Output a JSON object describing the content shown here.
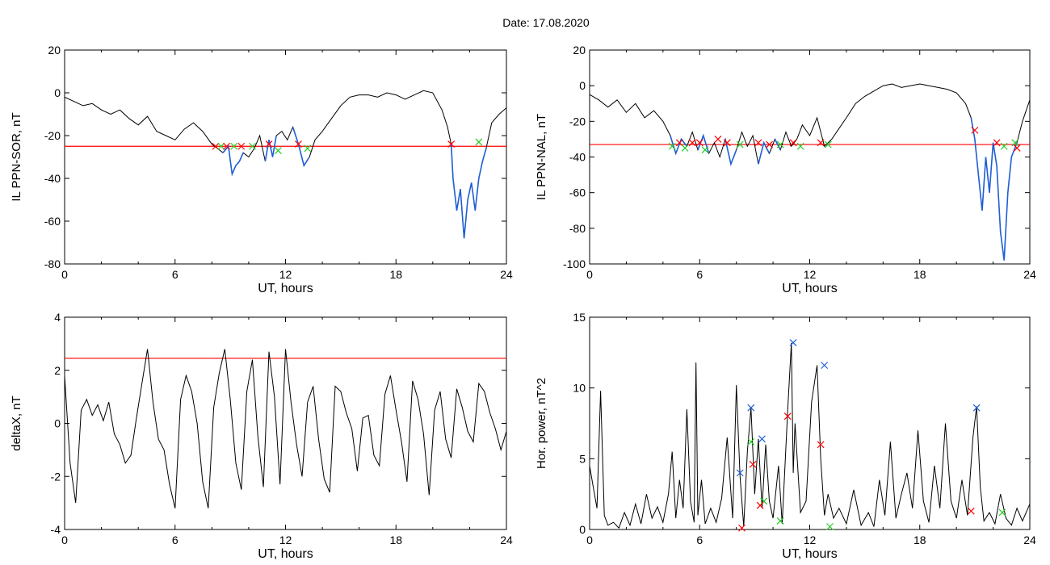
{
  "figure": {
    "title": "Date:  17.08.2020"
  },
  "colors": {
    "trace": "#000000",
    "threshold": "#ff0000",
    "highlight": "#1f5fd6",
    "marker_red": "#ff0000",
    "marker_green": "#22cc22",
    "marker_blue": "#1f5fd6"
  },
  "chart_data": [
    {
      "type": "line",
      "panel": "top-left",
      "xlabel": "UT, hours",
      "ylabel": "IL PPN-SOR, nT",
      "xlim": [
        0,
        24
      ],
      "ylim": [
        -80,
        20
      ],
      "xticks": [
        0,
        6,
        12,
        18,
        24
      ],
      "yticks": [
        -80,
        -60,
        -40,
        -20,
        0,
        20
      ],
      "threshold": -25,
      "x": [
        0,
        0.5,
        1,
        1.5,
        2,
        2.5,
        3,
        3.5,
        4,
        4.5,
        5,
        5.5,
        6,
        6.5,
        7,
        7.5,
        8,
        8.3,
        8.6,
        8.9,
        9.1,
        9.3,
        9.5,
        9.7,
        10,
        10.3,
        10.6,
        10.9,
        11.1,
        11.3,
        11.5,
        11.8,
        12.1,
        12.4,
        12.7,
        13,
        13.3,
        13.6,
        14,
        14.5,
        15,
        15.5,
        16,
        16.5,
        17,
        17.5,
        18,
        18.5,
        19,
        19.5,
        20,
        20.5,
        20.8,
        21,
        21.1,
        21.3,
        21.5,
        21.7,
        21.9,
        22.1,
        22.3,
        22.5,
        22.7,
        22.9,
        23.2,
        23.6,
        24
      ],
      "y": [
        -2,
        -4,
        -6,
        -5,
        -8,
        -10,
        -8,
        -12,
        -15,
        -11,
        -18,
        -20,
        -22,
        -17,
        -14,
        -18,
        -24,
        -26,
        -28,
        -25,
        -38,
        -34,
        -32,
        -28,
        -30,
        -26,
        -20,
        -32,
        -22,
        -30,
        -20,
        -18,
        -22,
        -16,
        -24,
        -34,
        -30,
        -22,
        -18,
        -12,
        -6,
        -2,
        -1,
        -1,
        -2,
        0,
        -1,
        -3,
        -1,
        1,
        0,
        -8,
        -16,
        -24,
        -40,
        -55,
        -45,
        -68,
        -50,
        -42,
        -55,
        -40,
        -32,
        -26,
        -14,
        -10,
        -7
      ],
      "highlight_ranges": [
        [
          8.6,
          9.7
        ],
        [
          10.9,
          11.5
        ],
        [
          12.4,
          13.3
        ],
        [
          21.0,
          23.0
        ]
      ],
      "markers": [
        {
          "x": 8.2,
          "y": -25,
          "color": "red"
        },
        {
          "x": 8.5,
          "y": -25,
          "color": "green"
        },
        {
          "x": 8.8,
          "y": -25,
          "color": "red"
        },
        {
          "x": 9.2,
          "y": -25,
          "color": "green"
        },
        {
          "x": 9.6,
          "y": -25,
          "color": "red"
        },
        {
          "x": 10.2,
          "y": -25,
          "color": "green"
        },
        {
          "x": 11.1,
          "y": -24,
          "color": "red"
        },
        {
          "x": 11.6,
          "y": -27,
          "color": "green"
        },
        {
          "x": 12.7,
          "y": -24,
          "color": "red"
        },
        {
          "x": 13.2,
          "y": -26,
          "color": "green"
        },
        {
          "x": 21.0,
          "y": -24,
          "color": "red"
        },
        {
          "x": 22.5,
          "y": -23,
          "color": "green"
        }
      ]
    },
    {
      "type": "line",
      "panel": "top-right",
      "xlabel": "UT, hours",
      "ylabel": "IL PPN-NAL, nT",
      "xlim": [
        0,
        24
      ],
      "ylim": [
        -100,
        20
      ],
      "xticks": [
        0,
        6,
        12,
        18,
        24
      ],
      "yticks": [
        -100,
        -80,
        -60,
        -40,
        -20,
        0,
        20
      ],
      "threshold": -33,
      "x": [
        0,
        0.5,
        1,
        1.5,
        2,
        2.5,
        3,
        3.5,
        4,
        4.4,
        4.7,
        5,
        5.3,
        5.6,
        5.9,
        6.2,
        6.5,
        6.8,
        7.1,
        7.4,
        7.7,
        8,
        8.3,
        8.6,
        8.9,
        9.2,
        9.5,
        9.8,
        10.1,
        10.4,
        10.7,
        11,
        11.3,
        11.6,
        12,
        12.4,
        12.8,
        13.2,
        13.6,
        14,
        14.5,
        15,
        15.5,
        16,
        16.5,
        17,
        17.5,
        18,
        18.5,
        19,
        19.5,
        20,
        20.5,
        20.8,
        21,
        21.2,
        21.4,
        21.6,
        21.8,
        22,
        22.2,
        22.4,
        22.6,
        22.8,
        23,
        23.3,
        23.6,
        24
      ],
      "y": [
        -5,
        -8,
        -12,
        -8,
        -15,
        -10,
        -18,
        -14,
        -20,
        -28,
        -38,
        -30,
        -34,
        -26,
        -36,
        -28,
        -38,
        -32,
        -40,
        -30,
        -44,
        -36,
        -26,
        -34,
        -28,
        -44,
        -32,
        -38,
        -30,
        -36,
        -26,
        -34,
        -30,
        -22,
        -28,
        -18,
        -34,
        -30,
        -24,
        -18,
        -10,
        -6,
        -3,
        0,
        1,
        -1,
        0,
        1,
        0,
        -1,
        -2,
        -4,
        -10,
        -18,
        -30,
        -50,
        -70,
        -40,
        -60,
        -32,
        -45,
        -82,
        -98,
        -60,
        -40,
        -32,
        -20,
        -8
      ],
      "highlight_ranges": [
        [
          4.4,
          5.3
        ],
        [
          5.9,
          6.5
        ],
        [
          7.4,
          8.0
        ],
        [
          9.2,
          9.8
        ],
        [
          10.1,
          10.4
        ],
        [
          20.8,
          23.3
        ]
      ],
      "markers": [
        {
          "x": 4.5,
          "y": -34,
          "color": "green"
        },
        {
          "x": 4.9,
          "y": -32,
          "color": "red"
        },
        {
          "x": 5.2,
          "y": -35,
          "color": "green"
        },
        {
          "x": 5.6,
          "y": -32,
          "color": "red"
        },
        {
          "x": 6.0,
          "y": -32,
          "color": "red"
        },
        {
          "x": 6.3,
          "y": -36,
          "color": "green"
        },
        {
          "x": 7.0,
          "y": -30,
          "color": "red"
        },
        {
          "x": 7.5,
          "y": -32,
          "color": "red"
        },
        {
          "x": 8.2,
          "y": -33,
          "color": "green"
        },
        {
          "x": 9.2,
          "y": -32,
          "color": "red"
        },
        {
          "x": 9.8,
          "y": -33,
          "color": "red"
        },
        {
          "x": 10.4,
          "y": -33,
          "color": "green"
        },
        {
          "x": 11.1,
          "y": -32,
          "color": "red"
        },
        {
          "x": 11.5,
          "y": -34,
          "color": "green"
        },
        {
          "x": 12.6,
          "y": -32,
          "color": "red"
        },
        {
          "x": 13.0,
          "y": -33,
          "color": "green"
        },
        {
          "x": 21.0,
          "y": -25,
          "color": "red"
        },
        {
          "x": 22.2,
          "y": -32,
          "color": "red"
        },
        {
          "x": 22.6,
          "y": -34,
          "color": "green"
        },
        {
          "x": 23.2,
          "y": -32,
          "color": "green"
        },
        {
          "x": 23.3,
          "y": -35,
          "color": "red"
        }
      ]
    },
    {
      "type": "line",
      "panel": "bottom-left",
      "xlabel": "UT, hours",
      "ylabel": "deltaX, nT",
      "xlim": [
        0,
        24
      ],
      "ylim": [
        -4,
        4
      ],
      "xticks": [
        0,
        6,
        12,
        18,
        24
      ],
      "yticks": [
        -4,
        -2,
        0,
        2,
        4
      ],
      "threshold": 2.45,
      "x": [
        0,
        0.3,
        0.6,
        0.9,
        1.2,
        1.5,
        1.8,
        2.1,
        2.4,
        2.7,
        3,
        3.3,
        3.6,
        3.9,
        4.2,
        4.5,
        4.8,
        5.1,
        5.4,
        5.7,
        6,
        6.3,
        6.6,
        6.9,
        7.2,
        7.5,
        7.8,
        8.1,
        8.4,
        8.7,
        9,
        9.3,
        9.6,
        9.9,
        10.2,
        10.5,
        10.8,
        11.1,
        11.4,
        11.7,
        12,
        12.3,
        12.6,
        12.9,
        13.2,
        13.5,
        13.8,
        14.1,
        14.4,
        14.7,
        15,
        15.3,
        15.6,
        15.9,
        16.2,
        16.5,
        16.8,
        17.1,
        17.4,
        17.7,
        18,
        18.3,
        18.6,
        18.9,
        19.2,
        19.5,
        19.8,
        20.1,
        20.4,
        20.7,
        21,
        21.3,
        21.6,
        21.9,
        22.2,
        22.5,
        22.8,
        23.1,
        23.4,
        23.7,
        24
      ],
      "y": [
        1.8,
        -1.5,
        -3.0,
        0.5,
        0.9,
        0.3,
        0.7,
        0.1,
        0.8,
        -0.4,
        -0.8,
        -1.5,
        -1.2,
        0.2,
        1.5,
        2.8,
        0.8,
        -0.6,
        -1.0,
        -2.3,
        -3.2,
        0.9,
        1.8,
        1.2,
        0.0,
        -2.2,
        -3.2,
        0.6,
        1.9,
        2.8,
        0.9,
        -1.5,
        -2.5,
        1.2,
        2.4,
        -0.5,
        -2.4,
        2.7,
        1.0,
        -2.3,
        2.8,
        0.8,
        -0.8,
        -2.0,
        0.8,
        1.4,
        -0.6,
        -2.1,
        -2.6,
        1.4,
        1.2,
        0.4,
        -0.2,
        -1.8,
        0.2,
        0.3,
        -1.2,
        -1.6,
        1.1,
        1.8,
        0.5,
        -0.7,
        -2.2,
        1.6,
        0.9,
        -0.4,
        -2.7,
        0.5,
        1.2,
        -0.6,
        -1.3,
        1.3,
        0.6,
        -0.3,
        -0.7,
        1.5,
        1.2,
        0.4,
        -0.2,
        -1.0,
        -0.3
      ]
    },
    {
      "type": "line",
      "panel": "bottom-right",
      "xlabel": "UT, hours",
      "ylabel": "Hor. power, nT^2",
      "xlim": [
        0,
        24
      ],
      "ylim": [
        0,
        15
      ],
      "xticks": [
        0,
        6,
        12,
        18,
        24
      ],
      "yticks": [
        0,
        5,
        10,
        15
      ],
      "x": [
        0,
        0.2,
        0.4,
        0.6,
        0.8,
        1,
        1.3,
        1.6,
        1.9,
        2.2,
        2.5,
        2.8,
        3.1,
        3.4,
        3.7,
        4,
        4.3,
        4.5,
        4.7,
        4.9,
        5.1,
        5.3,
        5.5,
        5.7,
        5.8,
        5.9,
        6.1,
        6.3,
        6.6,
        6.9,
        7.2,
        7.5,
        7.8,
        8.0,
        8.2,
        8.4,
        8.6,
        8.8,
        9.0,
        9.2,
        9.4,
        9.6,
        9.8,
        10.0,
        10.3,
        10.5,
        10.8,
        11.0,
        11.1,
        11.2,
        11.5,
        11.8,
        12.1,
        12.4,
        12.6,
        12.8,
        13.0,
        13.3,
        13.6,
        14.0,
        14.4,
        14.8,
        15.2,
        15.5,
        15.8,
        16.1,
        16.4,
        16.7,
        17.0,
        17.3,
        17.6,
        17.9,
        18.2,
        18.5,
        18.8,
        19.1,
        19.4,
        19.7,
        20.0,
        20.3,
        20.6,
        20.9,
        21.1,
        21.3,
        21.5,
        21.8,
        22.1,
        22.4,
        22.7,
        23.0,
        23.3,
        23.6,
        24
      ],
      "y": [
        4.5,
        3.0,
        1.5,
        9.8,
        1.0,
        0.3,
        0.5,
        0.1,
        1.2,
        0.3,
        1.8,
        0.4,
        2.5,
        0.8,
        1.6,
        0.5,
        2.5,
        5.5,
        0.8,
        3.5,
        1.5,
        8.5,
        2.0,
        0.5,
        11.8,
        1.0,
        3.5,
        0.4,
        1.5,
        0.5,
        2.2,
        6.5,
        0.8,
        10.2,
        3.8,
        0.2,
        5.5,
        8.6,
        2.5,
        6.4,
        1.5,
        6.0,
        2.0,
        0.8,
        4.5,
        0.4,
        8.5,
        13.2,
        4.0,
        7.5,
        1.2,
        2.0,
        9.0,
        11.6,
        5.0,
        1.0,
        2.5,
        0.8,
        1.5,
        0.4,
        2.8,
        0.3,
        1.2,
        0.2,
        3.5,
        1.0,
        6.2,
        0.8,
        2.5,
        4.0,
        1.5,
        7.0,
        2.0,
        0.5,
        4.5,
        1.5,
        7.5,
        2.0,
        0.8,
        3.5,
        1.0,
        6.5,
        8.7,
        3.0,
        0.6,
        1.2,
        0.4,
        2.5,
        0.8,
        0.3,
        1.5,
        0.6,
        1.8
      ],
      "markers": [
        {
          "x": 8.2,
          "y": 4.0,
          "color": "blue"
        },
        {
          "x": 8.3,
          "y": 0.1,
          "color": "red"
        },
        {
          "x": 8.8,
          "y": 8.6,
          "color": "blue"
        },
        {
          "x": 8.8,
          "y": 6.2,
          "color": "green"
        },
        {
          "x": 8.9,
          "y": 4.6,
          "color": "red"
        },
        {
          "x": 9.4,
          "y": 6.4,
          "color": "blue"
        },
        {
          "x": 9.5,
          "y": 2.0,
          "color": "green"
        },
        {
          "x": 9.3,
          "y": 1.7,
          "color": "red"
        },
        {
          "x": 10.8,
          "y": 8.0,
          "color": "red"
        },
        {
          "x": 10.4,
          "y": 0.6,
          "color": "green"
        },
        {
          "x": 11.1,
          "y": 13.2,
          "color": "blue"
        },
        {
          "x": 12.6,
          "y": 6.0,
          "color": "red"
        },
        {
          "x": 12.8,
          "y": 11.6,
          "color": "blue"
        },
        {
          "x": 13.1,
          "y": 0.2,
          "color": "green"
        },
        {
          "x": 21.1,
          "y": 8.6,
          "color": "blue"
        },
        {
          "x": 20.8,
          "y": 1.3,
          "color": "red"
        },
        {
          "x": 22.5,
          "y": 1.2,
          "color": "green"
        }
      ]
    }
  ],
  "panels_layout": [
    "top-left",
    "top-right",
    "bottom-left",
    "bottom-right"
  ]
}
